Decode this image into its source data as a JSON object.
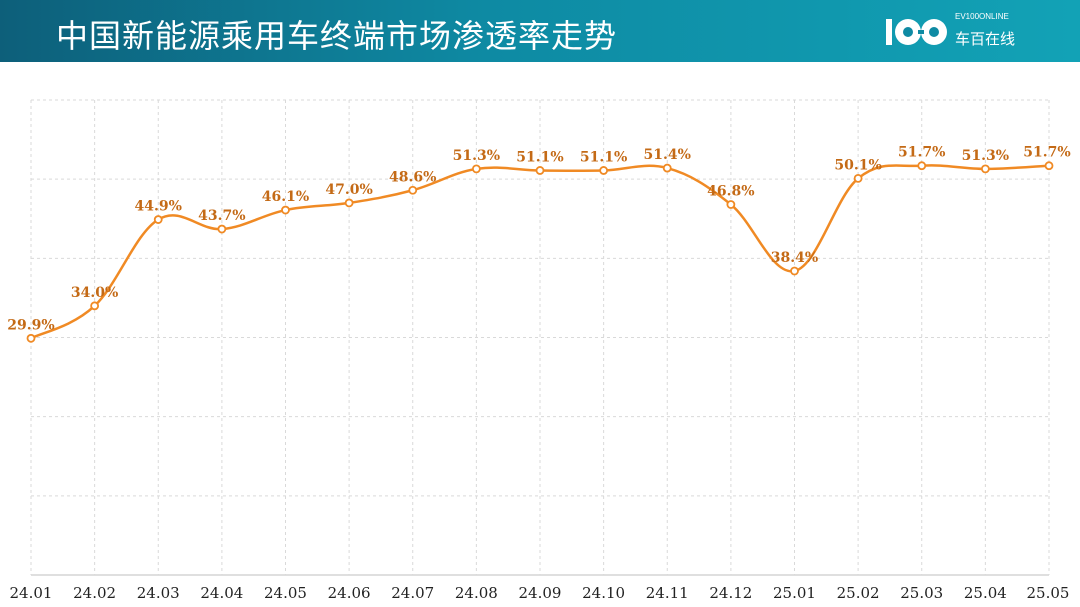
{
  "header": {
    "title": "中国新能源乘用车终端市场渗透率走势",
    "logo_text_en": "EV100ONLINE",
    "logo_text_cn": "车百在线"
  },
  "colors": {
    "header_start": "#0d5f7a",
    "header_end": "#12a2b6",
    "series_line": "#f08a24",
    "label_text": "#c46a16",
    "grid": "#d9d9d9"
  },
  "chart_data": {
    "type": "line",
    "categories": [
      "24.01",
      "24.02",
      "24.03",
      "24.04",
      "24.05",
      "24.06",
      "24.07",
      "24.08",
      "24.09",
      "24.10",
      "24.11",
      "24.12",
      "25.01",
      "25.02",
      "25.03",
      "25.04",
      "25.05"
    ],
    "values": [
      29.9,
      34.0,
      44.9,
      43.7,
      46.1,
      47.0,
      48.6,
      51.3,
      51.1,
      51.1,
      51.4,
      46.8,
      38.4,
      50.1,
      51.7,
      51.3,
      51.7
    ],
    "data_labels": [
      "29.9%",
      "34.0%",
      "44.9%",
      "43.7%",
      "46.1%",
      "47.0%",
      "48.6%",
      "51.3%",
      "51.1%",
      "51.1%",
      "51.4%",
      "46.8%",
      "38.4%",
      "50.1%",
      "51.7%",
      "51.3%",
      "51.7%"
    ],
    "title": "中国新能源乘用车终端市场渗透率走势",
    "xlabel": "",
    "ylabel": "",
    "ylim": [
      0,
      60
    ],
    "grid": true,
    "legend": "none",
    "smooth": true,
    "markers": "hollow-circle"
  }
}
